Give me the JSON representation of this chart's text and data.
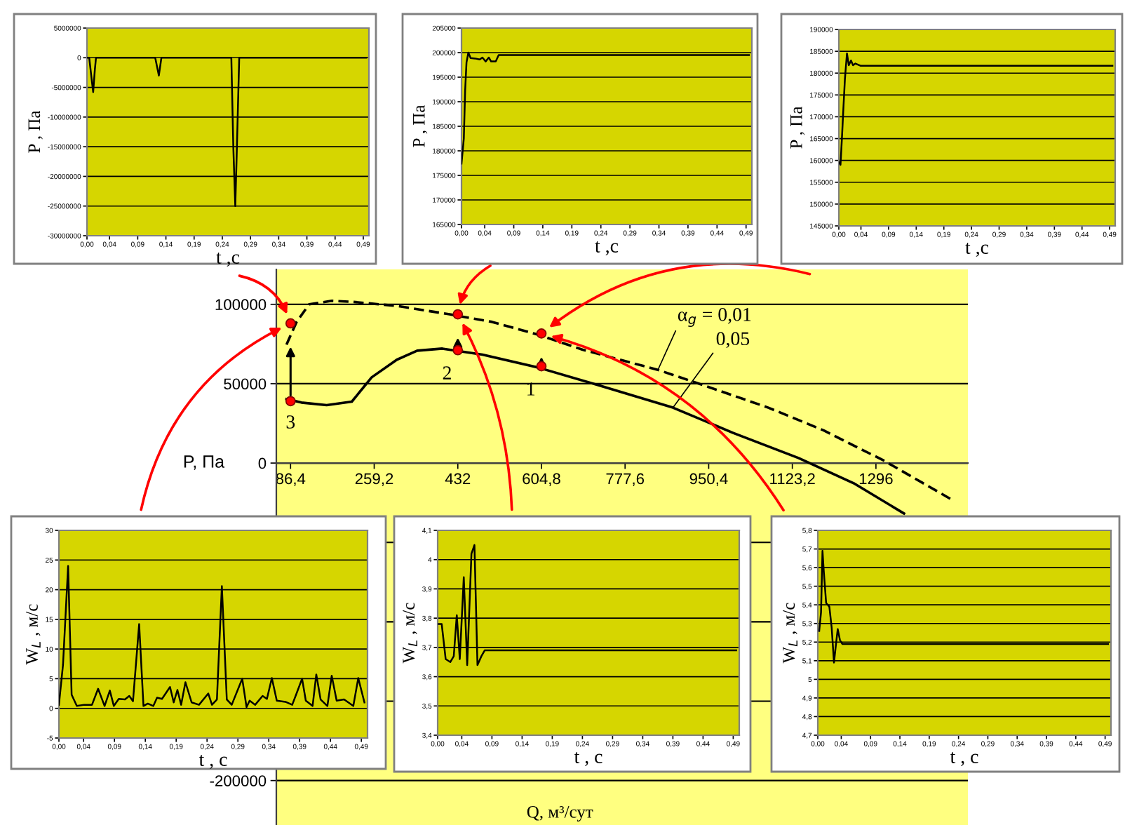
{
  "chart_data": [
    {
      "type": "line",
      "xlabel": "t ,с",
      "ylabel": "P , Па",
      "xlim": [
        0,
        0.5
      ],
      "xticks": [
        {
          "value": 0,
          "label": "0,00"
        },
        {
          "value": 0.04,
          "label": "0,04"
        },
        {
          "value": 0.09,
          "label": "0,09"
        },
        {
          "value": 0.14,
          "label": "0,14"
        },
        {
          "value": 0.19,
          "label": "0,19"
        },
        {
          "value": 0.24,
          "label": "0,24"
        },
        {
          "value": 0.29,
          "label": "0,29"
        },
        {
          "value": 0.34,
          "label": "0,34"
        },
        {
          "value": 0.39,
          "label": "0,39"
        },
        {
          "value": 0.44,
          "label": "0,44"
        },
        {
          "value": 0.49,
          "label": "0,49"
        }
      ],
      "ylim": [
        -30000000,
        5000000
      ],
      "yticks": [
        -30000000,
        -25000000,
        -20000000,
        -15000000,
        -10000000,
        -5000000,
        0,
        5000000
      ],
      "grid": "y",
      "series": [
        {
          "color": "#000000",
          "x": [
            0,
            0.004,
            0.009,
            0.011,
            0.014,
            0.016,
            0.121,
            0.1275,
            0.132,
            0.256,
            0.2595,
            0.263,
            0.2655,
            0.27,
            0.495
          ],
          "values": [
            0,
            0,
            -4200000,
            -5800000,
            -2000000,
            0,
            0,
            -3000000,
            0,
            0,
            -15000000,
            -25000000,
            -16500000,
            0,
            0
          ]
        }
      ]
    },
    {
      "type": "line",
      "xlabel": "t ,с",
      "ylabel": "P , Па",
      "xlim": [
        0,
        0.5
      ],
      "xticks": [
        {
          "value": 0,
          "label": "0,00"
        },
        {
          "value": 0.04,
          "label": "0,04"
        },
        {
          "value": 0.09,
          "label": "0,09"
        },
        {
          "value": 0.14,
          "label": "0,14"
        },
        {
          "value": 0.19,
          "label": "0,19"
        },
        {
          "value": 0.24,
          "label": "0,24"
        },
        {
          "value": 0.29,
          "label": "0,29"
        },
        {
          "value": 0.34,
          "label": "0,34"
        },
        {
          "value": 0.39,
          "label": "0,39"
        },
        {
          "value": 0.44,
          "label": "0,44"
        },
        {
          "value": 0.49,
          "label": "0,49"
        }
      ],
      "ylim": [
        165000,
        205000
      ],
      "yticks": [
        165000,
        170000,
        175000,
        180000,
        185000,
        190000,
        195000,
        200000,
        205000
      ],
      "grid": "y",
      "series": [
        {
          "color": "#000000",
          "x": [
            0,
            0.004,
            0.0063,
            0.0086,
            0.0118,
            0.0157,
            0.0236,
            0.0314,
            0.036,
            0.0416,
            0.047,
            0.051,
            0.059,
            0.064,
            0.495
          ],
          "values": [
            177400,
            182500,
            192400,
            198000,
            200000,
            198900,
            198800,
            198600,
            199000,
            198200,
            199000,
            198200,
            198200,
            199500,
            199500
          ]
        }
      ]
    },
    {
      "type": "line",
      "xlabel": "t ,с",
      "ylabel": "P , Па",
      "xlim": [
        0,
        0.5
      ],
      "xticks": [
        {
          "value": 0,
          "label": "0,00"
        },
        {
          "value": 0.04,
          "label": "0,04"
        },
        {
          "value": 0.09,
          "label": "0,09"
        },
        {
          "value": 0.14,
          "label": "0,14"
        },
        {
          "value": 0.19,
          "label": "0,19"
        },
        {
          "value": 0.24,
          "label": "0,24"
        },
        {
          "value": 0.29,
          "label": "0,29"
        },
        {
          "value": 0.34,
          "label": "0,34"
        },
        {
          "value": 0.39,
          "label": "0,39"
        },
        {
          "value": 0.44,
          "label": "0,44"
        },
        {
          "value": 0.49,
          "label": "0,49"
        }
      ],
      "ylim": [
        145000,
        190000
      ],
      "yticks": [
        145000,
        150000,
        155000,
        160000,
        165000,
        170000,
        175000,
        180000,
        185000,
        190000
      ],
      "grid": "y",
      "series": [
        {
          "color": "#000000",
          "x": [
            0,
            0.003,
            0.0055,
            0.008,
            0.011,
            0.0147,
            0.018,
            0.022,
            0.0257,
            0.03,
            0.039,
            0.495
          ],
          "values": [
            159600,
            159000,
            164900,
            171300,
            178700,
            184500,
            181800,
            182900,
            181800,
            182200,
            181700,
            181700
          ]
        }
      ]
    },
    {
      "type": "line",
      "xlabel": "Q, м³/сут",
      "ylabel": "P, Па",
      "xlim": [
        57,
        1486
      ],
      "xticks": [
        {
          "value": 86.4,
          "label": "86,4"
        },
        {
          "value": 259.2,
          "label": "259,2"
        },
        432,
        {
          "value": 604.8,
          "label": "604,8"
        },
        {
          "value": 777.6,
          "label": "777,6"
        },
        {
          "value": 950.4,
          "label": "950,4"
        },
        {
          "value": 1123.2,
          "label": "1123,2"
        },
        1296
      ],
      "ylim": [
        -228000,
        122000
      ],
      "yticks": [
        -200000,
        {
          "value": -150000,
          "label": null
        },
        {
          "value": -100000,
          "label": null
        },
        {
          "value": -50000,
          "label": null
        },
        0,
        50000,
        100000
      ],
      "grid": "y",
      "series": [
        {
          "color": "#000000",
          "line_style": "dashed",
          "x": [
            78,
            98.8,
            124.8,
            171.4,
            212.9,
            306,
            415,
            503,
            596.6,
            690,
            845.5,
            928.4,
            1073.6,
            1187.7,
            1312,
            1457
          ],
          "values": [
            74600,
            88900,
            100000,
            102200,
            101600,
            99000,
            93700,
            88900,
            81000,
            71400,
            58700,
            50200,
            34900,
            20600,
            1600,
            -23800
          ]
        },
        {
          "color": "#000000",
          "line_style": "solid",
          "x": [
            78,
            109,
            161,
            213,
            254,
            306,
            348,
            400,
            483,
            596.6,
            721,
            876.6,
            1001,
            1136,
            1250,
            1354
          ],
          "values": [
            40300,
            38100,
            36500,
            38700,
            54000,
            65100,
            70800,
            72100,
            68300,
            60300,
            49200,
            34900,
            19000,
            3200,
            -12700,
            -31750
          ]
        },
        {
          "type": "scatter",
          "color": "#ff0000",
          "marker": "circle",
          "x": [
            86.4,
            86.4,
            432,
            432,
            604.8,
            604.8
          ],
          "values": [
            88000,
            39000,
            93700,
            71100,
            81600,
            61000
          ]
        }
      ],
      "annotations": [
        {
          "text": "α$_{g}$ = 0,01",
          "x": 845.5,
          "y": 58700
        },
        {
          "text": "0,05",
          "x": 876.6,
          "y": 34900
        },
        {
          "text": "1",
          "x": 604.8,
          "y": 61000
        },
        {
          "text": "2",
          "x": 432,
          "y": 71100
        },
        {
          "text": "3",
          "x": 86.4,
          "y": 39000
        }
      ]
    },
    {
      "type": "line",
      "xlabel": "t , с",
      "ylabel": "W$_{L}$ , м/с",
      "xlim": [
        0,
        0.5
      ],
      "xticks": [
        {
          "value": 0,
          "label": "0,00"
        },
        {
          "value": 0.04,
          "label": "0,04"
        },
        {
          "value": 0.09,
          "label": "0,09"
        },
        {
          "value": 0.14,
          "label": "0,14"
        },
        {
          "value": 0.19,
          "label": "0,19"
        },
        {
          "value": 0.24,
          "label": "0,24"
        },
        {
          "value": 0.29,
          "label": "0,29"
        },
        {
          "value": 0.34,
          "label": "0,34"
        },
        {
          "value": 0.39,
          "label": "0,39"
        },
        {
          "value": 0.44,
          "label": "0,44"
        },
        {
          "value": 0.49,
          "label": "0,49"
        }
      ],
      "ylim": [
        -5,
        30
      ],
      "yticks": [
        -5,
        0,
        5,
        10,
        15,
        20,
        25,
        30
      ],
      "grid": "y",
      "series": [
        {
          "color": "#000000",
          "x": [
            0,
            0.0066,
            0.0149,
            0.0206,
            0.029,
            0.041,
            0.0536,
            0.0635,
            0.074,
            0.0825,
            0.089,
            0.097,
            0.107,
            0.114,
            0.12,
            0.13,
            0.137,
            0.144,
            0.153,
            0.159,
            0.167,
            0.18,
            0.186,
            0.192,
            0.198,
            0.205,
            0.215,
            0.227,
            0.242,
            0.248,
            0.256,
            0.264,
            0.272,
            0.28,
            0.297,
            0.304,
            0.309,
            0.318,
            0.33,
            0.337,
            0.345,
            0.353,
            0.367,
            0.378,
            0.385,
            0.394,
            0.4,
            0.411,
            0.417,
            0.424,
            0.435,
            0.442,
            0.45,
            0.462,
            0.477,
            0.485,
            0.495
          ],
          "values": [
            0.6,
            7.3,
            24,
            2.3,
            0.4,
            0.6,
            0.6,
            3.3,
            0.4,
            3,
            0.4,
            1.6,
            1.5,
            2.1,
            1.2,
            14.2,
            0.4,
            0.8,
            0.4,
            1.8,
            1.6,
            3.6,
            1,
            3.1,
            0.6,
            4.4,
            1,
            0.6,
            2.5,
            0.6,
            1.5,
            20.6,
            1.5,
            0.6,
            5,
            0.2,
            1.3,
            0.6,
            2.1,
            1.6,
            5.1,
            1.3,
            1.1,
            0.6,
            2.5,
            5,
            1.3,
            0.4,
            5.7,
            1.5,
            0.4,
            5.5,
            1.3,
            1.5,
            0.4,
            5.1,
            1
          ]
        }
      ]
    },
    {
      "type": "line",
      "xlabel": "t , с",
      "ylabel": "W$_{L}$ , м/с",
      "xlim": [
        0,
        0.5
      ],
      "xticks": [
        {
          "value": 0,
          "label": "0,00"
        },
        {
          "value": 0.04,
          "label": "0,04"
        },
        {
          "value": 0.09,
          "label": "0,09"
        },
        {
          "value": 0.14,
          "label": "0,14"
        },
        {
          "value": 0.19,
          "label": "0,19"
        },
        {
          "value": 0.24,
          "label": "0,24"
        },
        {
          "value": 0.29,
          "label": "0,29"
        },
        {
          "value": 0.34,
          "label": "0,34"
        },
        {
          "value": 0.39,
          "label": "0,39"
        },
        {
          "value": 0.44,
          "label": "0,44"
        },
        {
          "value": 0.49,
          "label": "0,49"
        }
      ],
      "ylim": [
        3.4,
        4.1
      ],
      "yticks": [
        {
          "value": 3.4,
          "label": "3,4"
        },
        {
          "value": 3.5,
          "label": "3,5"
        },
        {
          "value": 3.6,
          "label": "3,6"
        },
        {
          "value": 3.7,
          "label": "3,7"
        },
        {
          "value": 3.8,
          "label": "3,8"
        },
        {
          "value": 3.9,
          "label": "3,9"
        },
        4,
        {
          "value": 4.1,
          "label": "4,1"
        }
      ],
      "grid": "y",
      "series": [
        {
          "color": "#000000",
          "x": [
            0.0017,
            0.0067,
            0.0133,
            0.021,
            0.0267,
            0.0317,
            0.0367,
            0.0433,
            0.049,
            0.056,
            0.061,
            0.066,
            0.0725,
            0.078,
            0.495
          ],
          "values": [
            3.78,
            3.78,
            3.66,
            3.65,
            3.67,
            3.81,
            3.66,
            3.94,
            3.64,
            4.02,
            4.05,
            3.64,
            3.67,
            3.69,
            3.69
          ]
        }
      ]
    },
    {
      "type": "line",
      "xlabel": "t , с",
      "ylabel": "W$_{L}$ , м/с",
      "xlim": [
        0,
        0.5
      ],
      "xticks": [
        {
          "value": 0,
          "label": "0,00"
        },
        {
          "value": 0.04,
          "label": "0,04"
        },
        {
          "value": 0.09,
          "label": "0,09"
        },
        {
          "value": 0.14,
          "label": "0,14"
        },
        {
          "value": 0.19,
          "label": "0,19"
        },
        {
          "value": 0.24,
          "label": "0,24"
        },
        {
          "value": 0.29,
          "label": "0,29"
        },
        {
          "value": 0.34,
          "label": "0,34"
        },
        {
          "value": 0.39,
          "label": "0,39"
        },
        {
          "value": 0.44,
          "label": "0,44"
        },
        {
          "value": 0.49,
          "label": "0,49"
        }
      ],
      "ylim": [
        4.7,
        5.8
      ],
      "yticks": [
        {
          "value": 4.7,
          "label": "4,7"
        },
        {
          "value": 4.8,
          "label": "4,8"
        },
        {
          "value": 4.9,
          "label": "4,9"
        },
        5,
        {
          "value": 5.1,
          "label": "5,1"
        },
        {
          "value": 5.2,
          "label": "5,2"
        },
        {
          "value": 5.3,
          "label": "5,3"
        },
        {
          "value": 5.4,
          "label": "5,4"
        },
        {
          "value": 5.5,
          "label": "5,5"
        },
        {
          "value": 5.6,
          "label": "5,6"
        },
        {
          "value": 5.7,
          "label": "5,7"
        },
        {
          "value": 5.8,
          "label": "5,8"
        }
      ],
      "grid": "y",
      "series": [
        {
          "color": "#000000",
          "x": [
            0.0024,
            0.0055,
            0.008,
            0.0102,
            0.0142,
            0.0197,
            0.0236,
            0.0276,
            0.0307,
            0.034,
            0.0378,
            0.0418,
            0.495
          ],
          "values": [
            5.26,
            5.36,
            5.69,
            5.58,
            5.41,
            5.39,
            5.28,
            5.09,
            5.18,
            5.27,
            5.21,
            5.19,
            5.19
          ]
        }
      ]
    }
  ]
}
